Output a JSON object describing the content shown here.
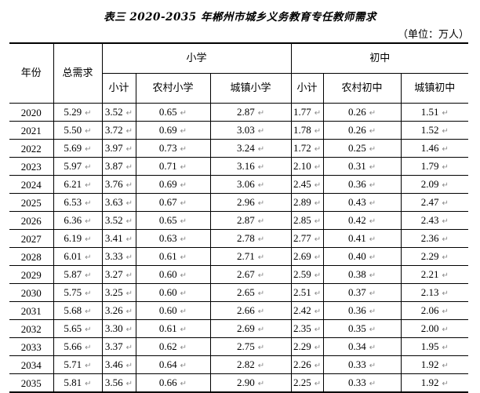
{
  "title": "表三    2020-2035 年郴州市城乡义务教育专任教师需求",
  "unit": "（单位：万人）",
  "headers": {
    "year": "年份",
    "total": "总需求",
    "primary_group": "小学",
    "middle_group": "初中",
    "sub": [
      "小计",
      "农村小学",
      "城镇小学",
      "小计",
      "农村初中",
      "城镇初中"
    ]
  },
  "rows": [
    {
      "year": "2020",
      "total": "5.29",
      "p_sub": "3.52",
      "p_rural": "0.65",
      "p_urban": "2.87",
      "m_sub": "1.77",
      "m_rural": "0.26",
      "m_urban": "1.51"
    },
    {
      "year": "2021",
      "total": "5.50",
      "p_sub": "3.72",
      "p_rural": "0.69",
      "p_urban": "3.03",
      "m_sub": "1.78",
      "m_rural": "0.26",
      "m_urban": "1.52"
    },
    {
      "year": "2022",
      "total": "5.69",
      "p_sub": "3.97",
      "p_rural": "0.73",
      "p_urban": "3.24",
      "m_sub": "1.72",
      "m_rural": "0.25",
      "m_urban": "1.46"
    },
    {
      "year": "2023",
      "total": "5.97",
      "p_sub": "3.87",
      "p_rural": "0.71",
      "p_urban": "3.16",
      "m_sub": "2.10",
      "m_rural": "0.31",
      "m_urban": "1.79"
    },
    {
      "year": "2024",
      "total": "6.21",
      "p_sub": "3.76",
      "p_rural": "0.69",
      "p_urban": "3.06",
      "m_sub": "2.45",
      "m_rural": "0.36",
      "m_urban": "2.09"
    },
    {
      "year": "2025",
      "total": "6.53",
      "p_sub": "3.63",
      "p_rural": "0.67",
      "p_urban": "2.96",
      "m_sub": "2.89",
      "m_rural": "0.43",
      "m_urban": "2.47"
    },
    {
      "year": "2026",
      "total": "6.36",
      "p_sub": "3.52",
      "p_rural": "0.65",
      "p_urban": "2.87",
      "m_sub": "2.85",
      "m_rural": "0.42",
      "m_urban": "2.43"
    },
    {
      "year": "2027",
      "total": "6.19",
      "p_sub": "3.41",
      "p_rural": "0.63",
      "p_urban": "2.78",
      "m_sub": "2.77",
      "m_rural": "0.41",
      "m_urban": "2.36"
    },
    {
      "year": "2028",
      "total": "6.01",
      "p_sub": "3.33",
      "p_rural": "0.61",
      "p_urban": "2.71",
      "m_sub": "2.69",
      "m_rural": "0.40",
      "m_urban": "2.29"
    },
    {
      "year": "2029",
      "total": "5.87",
      "p_sub": "3.27",
      "p_rural": "0.60",
      "p_urban": "2.67",
      "m_sub": "2.59",
      "m_rural": "0.38",
      "m_urban": "2.21"
    },
    {
      "year": "2030",
      "total": "5.75",
      "p_sub": "3.25",
      "p_rural": "0.60",
      "p_urban": "2.65",
      "m_sub": "2.51",
      "m_rural": "0.37",
      "m_urban": "2.13"
    },
    {
      "year": "2031",
      "total": "5.68",
      "p_sub": "3.26",
      "p_rural": "0.60",
      "p_urban": "2.66",
      "m_sub": "2.42",
      "m_rural": "0.36",
      "m_urban": "2.06"
    },
    {
      "year": "2032",
      "total": "5.65",
      "p_sub": "3.30",
      "p_rural": "0.61",
      "p_urban": "2.69",
      "m_sub": "2.35",
      "m_rural": "0.35",
      "m_urban": "2.00"
    },
    {
      "year": "2033",
      "total": "5.66",
      "p_sub": "3.37",
      "p_rural": "0.62",
      "p_urban": "2.75",
      "m_sub": "2.29",
      "m_rural": "0.34",
      "m_urban": "1.95"
    },
    {
      "year": "2034",
      "total": "5.71",
      "p_sub": "3.46",
      "p_rural": "0.64",
      "p_urban": "2.82",
      "m_sub": "2.26",
      "m_rural": "0.33",
      "m_urban": "1.92"
    },
    {
      "year": "2035",
      "total": "5.81",
      "p_sub": "3.56",
      "p_rural": "0.66",
      "p_urban": "2.90",
      "m_sub": "2.25",
      "m_rural": "0.33",
      "m_urban": "1.92"
    }
  ]
}
